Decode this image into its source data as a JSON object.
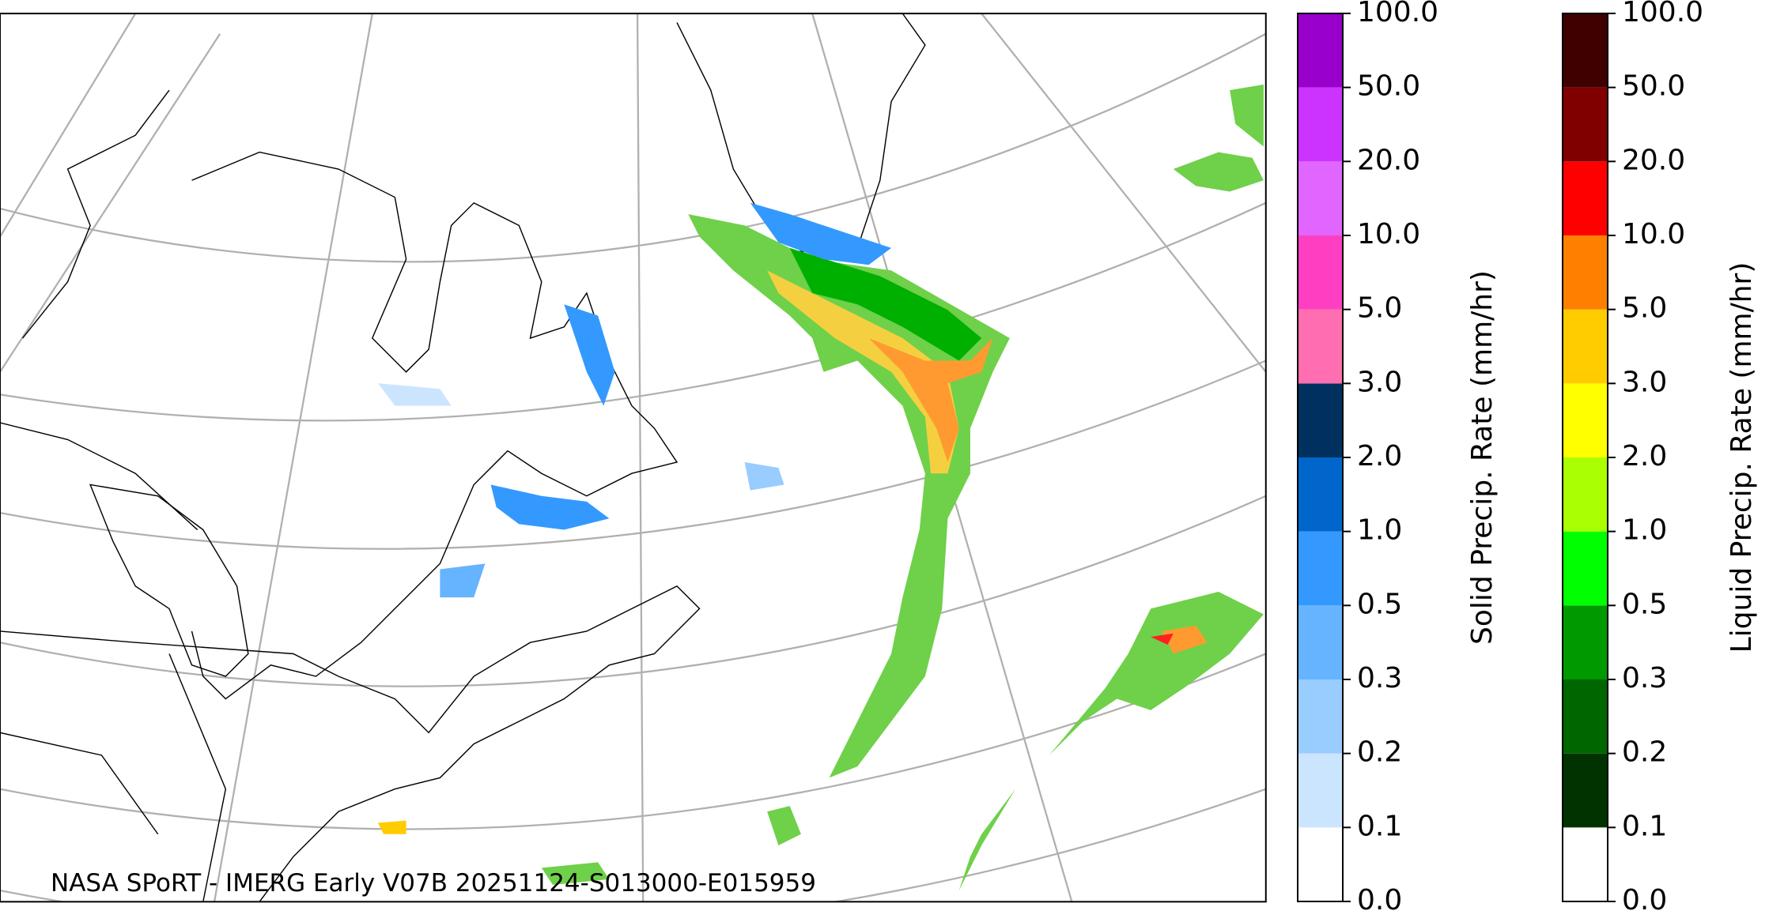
{
  "map": {
    "caption": "NASA SPoRT - IMERG Early V07B 20251124-S013000-E015959"
  },
  "colorbars": [
    {
      "label": "Solid Precip. Rate (mm/hr)",
      "ticks": [
        {
          "value": 0,
          "label": "0.0"
        },
        {
          "value": 0.1,
          "label": "0.1"
        },
        {
          "value": 0.2,
          "label": "0.2"
        },
        {
          "value": 0.3,
          "label": "0.3"
        },
        {
          "value": 0.5,
          "label": "0.5"
        },
        {
          "value": 1,
          "label": "1.0"
        },
        {
          "value": 2,
          "label": "2.0"
        },
        {
          "value": 3,
          "label": "3.0"
        },
        {
          "value": 5,
          "label": "5.0"
        },
        {
          "value": 10,
          "label": "10.0"
        },
        {
          "value": 20,
          "label": "20.0"
        },
        {
          "value": 50,
          "label": "50.0"
        },
        {
          "value": 100,
          "label": "100.0"
        }
      ],
      "colors": [
        "#ffffff",
        "#cce5ff",
        "#99ccff",
        "#66b3ff",
        "#3399ff",
        "#0066cc",
        "#00305e",
        "#ff6eb0",
        "#ff3fc2",
        "#e066ff",
        "#cc33ff",
        "#9900cc"
      ]
    },
    {
      "label": "Liquid Precip. Rate (mm/hr)",
      "ticks": [
        {
          "value": 0,
          "label": "0.0"
        },
        {
          "value": 0.1,
          "label": "0.1"
        },
        {
          "value": 0.2,
          "label": "0.2"
        },
        {
          "value": 0.3,
          "label": "0.3"
        },
        {
          "value": 0.5,
          "label": "0.5"
        },
        {
          "value": 1,
          "label": "1.0"
        },
        {
          "value": 2,
          "label": "2.0"
        },
        {
          "value": 3,
          "label": "3.0"
        },
        {
          "value": 5,
          "label": "5.0"
        },
        {
          "value": 10,
          "label": "10.0"
        },
        {
          "value": 20,
          "label": "20.0"
        },
        {
          "value": 50,
          "label": "50.0"
        },
        {
          "value": 100,
          "label": "100.0"
        }
      ],
      "colors": [
        "#ffffff",
        "#003300",
        "#006600",
        "#009900",
        "#00ff00",
        "#aaff00",
        "#ffff00",
        "#ffcc00",
        "#ff8000",
        "#ff0000",
        "#800000",
        "#400000"
      ]
    }
  ]
}
